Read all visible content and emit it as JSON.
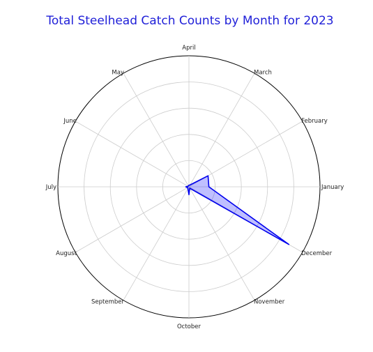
{
  "chart_data": {
    "type": "radar",
    "title": "Total Steelhead Catch Counts by Month for 2023",
    "categories": [
      "January",
      "February",
      "March",
      "April",
      "May",
      "June",
      "July",
      "August",
      "September",
      "October",
      "November",
      "December"
    ],
    "series": [
      {
        "values": [
          38,
          42,
          4,
          3,
          2,
          2,
          6,
          3,
          4,
          15,
          3,
          220
        ]
      }
    ],
    "rlim": [
      0,
      250
    ],
    "rgrid": [
      50,
      100,
      150,
      200
    ],
    "grid": true,
    "radial_tick_labels": false,
    "colors": {
      "series_fill": "#0000ff",
      "series_line": "#0000ee",
      "title": "#1f1fd8"
    }
  }
}
